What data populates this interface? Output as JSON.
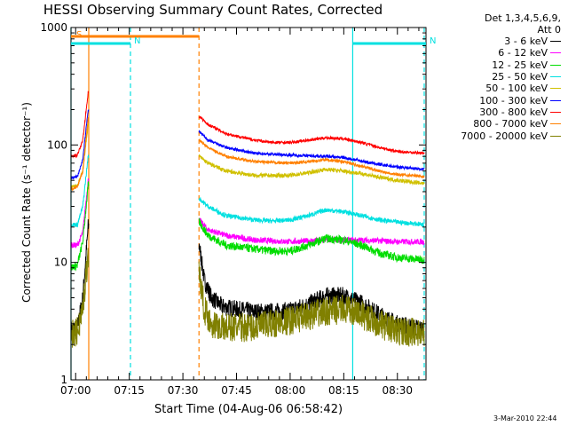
{
  "colors": {
    "3-6": "#000000",
    "6-12": "#ff00ff",
    "12-25": "#00dd00",
    "25-50": "#00e0e0",
    "50-100": "#d0c000",
    "100-300": "#0000ff",
    "300-800": "#ff0000",
    "800-7000": "#ff8000",
    "7000-20000": "#808000",
    "attenuator": "#ff8000",
    "night": "#00e0e0"
  },
  "chart_data": {
    "type": "line",
    "title": "HESSI Observing Summary Count Rates, Corrected",
    "xlabel": "Start Time (04-Aug-06 06:58:42)",
    "ylabel": "Corrected Count Rate (s⁻¹ detector⁻¹)",
    "y_scale": "log",
    "ylim": [
      1,
      1000
    ],
    "xlim": [
      "06:58:42",
      "08:38:00"
    ],
    "x_ticks": [
      "07:00",
      "07:15",
      "07:30",
      "07:45",
      "08:00",
      "08:15",
      "08:30"
    ],
    "y_ticks": [
      "1",
      "10",
      "100",
      "1000"
    ],
    "timestamp": "3-Mar-2010 22:44",
    "legend_header": [
      "Det 1,3,4,5,6,9,",
      "Att 0"
    ],
    "flags": [
      {
        "label": "S",
        "start": "06:58:42",
        "end": "07:34:30",
        "color": "attenuator"
      },
      {
        "label": "N",
        "start": "06:58:42",
        "end": "07:15:20",
        "color": "night"
      },
      {
        "label": "N",
        "start": "08:17:30",
        "end": "08:38:00",
        "color": "night"
      }
    ],
    "vlines": [
      {
        "time": "06:58:42",
        "color": "night",
        "style": "solid"
      },
      {
        "time": "07:03:40",
        "color": "attenuator",
        "style": "solid"
      },
      {
        "time": "07:15:20",
        "color": "night",
        "style": "dashed"
      },
      {
        "time": "07:34:30",
        "color": "attenuator",
        "style": "dashed"
      },
      {
        "time": "08:17:30",
        "color": "night",
        "style": "solid"
      },
      {
        "time": "08:37:30",
        "color": "night",
        "style": "dashed"
      }
    ],
    "gaps": [
      [
        "07:03:40",
        "07:34:30"
      ]
    ],
    "series": [
      {
        "name": "3 - 6 keV",
        "color": "3-6",
        "noise": 0.15,
        "points": [
          [
            "06:58:42",
            2.7
          ],
          [
            "07:00:30",
            2.8
          ],
          [
            "07:02:00",
            5.0
          ],
          [
            "07:03:30",
            20.0
          ],
          [
            "07:34:35",
            14.0
          ],
          [
            "07:36:00",
            7.0
          ],
          [
            "07:38:00",
            5.0
          ],
          [
            "07:41:00",
            4.2
          ],
          [
            "07:45:00",
            4.0
          ],
          [
            "07:50:00",
            3.8
          ],
          [
            "07:55:00",
            3.8
          ],
          [
            "08:00:00",
            3.9
          ],
          [
            "08:05:00",
            4.4
          ],
          [
            "08:10:00",
            5.2
          ],
          [
            "08:15:00",
            5.2
          ],
          [
            "08:20:00",
            4.5
          ],
          [
            "08:25:00",
            3.6
          ],
          [
            "08:30:00",
            3.0
          ],
          [
            "08:35:00",
            2.8
          ],
          [
            "08:37:30",
            2.7
          ]
        ]
      },
      {
        "name": "6 - 12 keV",
        "color": "6-12",
        "noise": 0.05,
        "points": [
          [
            "06:58:42",
            14.0
          ],
          [
            "07:00:30",
            14.0
          ],
          [
            "07:02:00",
            18.0
          ],
          [
            "07:03:30",
            50.0
          ],
          [
            "07:34:35",
            23.0
          ],
          [
            "07:37:00",
            19.0
          ],
          [
            "07:42:00",
            17.0
          ],
          [
            "07:50:00",
            15.5
          ],
          [
            "08:00:00",
            15.0
          ],
          [
            "08:10:00",
            15.5
          ],
          [
            "08:20:00",
            15.5
          ],
          [
            "08:30:00",
            15.0
          ],
          [
            "08:37:30",
            15.0
          ]
        ]
      },
      {
        "name": "12 - 25 keV",
        "color": "12-25",
        "noise": 0.07,
        "points": [
          [
            "06:58:42",
            9.0
          ],
          [
            "07:00:30",
            9.5
          ],
          [
            "07:02:00",
            15.0
          ],
          [
            "07:03:30",
            45.0
          ],
          [
            "07:34:35",
            22.0
          ],
          [
            "07:37:00",
            17.0
          ],
          [
            "07:42:00",
            14.0
          ],
          [
            "07:50:00",
            13.0
          ],
          [
            "07:55:00",
            12.5
          ],
          [
            "08:00:00",
            12.5
          ],
          [
            "08:05:00",
            14.0
          ],
          [
            "08:10:00",
            16.0
          ],
          [
            "08:15:00",
            15.5
          ],
          [
            "08:20:00",
            14.0
          ],
          [
            "08:25:00",
            12.0
          ],
          [
            "08:30:00",
            11.0
          ],
          [
            "08:37:30",
            10.5
          ]
        ]
      },
      {
        "name": "25 - 50 keV",
        "color": "25-50",
        "noise": 0.04,
        "points": [
          [
            "06:58:42",
            21.0
          ],
          [
            "07:00:30",
            21.0
          ],
          [
            "07:02:00",
            30.0
          ],
          [
            "07:03:30",
            80.0
          ],
          [
            "07:34:35",
            35.0
          ],
          [
            "07:37:00",
            30.0
          ],
          [
            "07:42:00",
            25.0
          ],
          [
            "07:50:00",
            23.0
          ],
          [
            "07:55:00",
            22.5
          ],
          [
            "08:00:00",
            23.0
          ],
          [
            "08:05:00",
            25.0
          ],
          [
            "08:10:00",
            28.0
          ],
          [
            "08:15:00",
            27.0
          ],
          [
            "08:20:00",
            25.0
          ],
          [
            "08:25:00",
            23.0
          ],
          [
            "08:30:00",
            22.0
          ],
          [
            "08:37:30",
            21.0
          ]
        ]
      },
      {
        "name": "50 - 100 keV",
        "color": "50-100",
        "noise": 0.035,
        "points": [
          [
            "06:58:42",
            45.0
          ],
          [
            "07:00:30",
            45.0
          ],
          [
            "07:02:00",
            60.0
          ],
          [
            "07:03:30",
            150.0
          ],
          [
            "07:34:35",
            80.0
          ],
          [
            "07:37:00",
            70.0
          ],
          [
            "07:42:00",
            60.0
          ],
          [
            "07:50:00",
            55.0
          ],
          [
            "08:00:00",
            55.0
          ],
          [
            "08:05:00",
            58.0
          ],
          [
            "08:10:00",
            62.0
          ],
          [
            "08:15:00",
            60.0
          ],
          [
            "08:20:00",
            57.0
          ],
          [
            "08:25:00",
            53.0
          ],
          [
            "08:30:00",
            50.0
          ],
          [
            "08:37:30",
            47.0
          ]
        ]
      },
      {
        "name": "100 - 300 keV",
        "color": "100-300",
        "noise": 0.025,
        "points": [
          [
            "06:58:42",
            52.0
          ],
          [
            "07:00:30",
            54.0
          ],
          [
            "07:02:00",
            75.0
          ],
          [
            "07:03:30",
            200.0
          ],
          [
            "07:34:35",
            130.0
          ],
          [
            "07:37:00",
            110.0
          ],
          [
            "07:42:00",
            95.0
          ],
          [
            "07:50:00",
            85.0
          ],
          [
            "08:00:00",
            82.0
          ],
          [
            "08:10:00",
            80.0
          ],
          [
            "08:15:00",
            78.0
          ],
          [
            "08:20:00",
            73.0
          ],
          [
            "08:25:00",
            68.0
          ],
          [
            "08:30:00",
            65.0
          ],
          [
            "08:37:30",
            62.0
          ]
        ]
      },
      {
        "name": "300 - 800 keV",
        "color": "300-800",
        "noise": 0.025,
        "points": [
          [
            "06:58:42",
            80.0
          ],
          [
            "07:00:30",
            82.0
          ],
          [
            "07:02:00",
            110.0
          ],
          [
            "07:03:30",
            280.0
          ],
          [
            "07:34:35",
            175.0
          ],
          [
            "07:37:00",
            150.0
          ],
          [
            "07:42:00",
            125.0
          ],
          [
            "07:50:00",
            110.0
          ],
          [
            "07:55:00",
            105.0
          ],
          [
            "08:00:00",
            105.0
          ],
          [
            "08:05:00",
            110.0
          ],
          [
            "08:10:00",
            115.0
          ],
          [
            "08:15:00",
            113.0
          ],
          [
            "08:20:00",
            105.0
          ],
          [
            "08:25:00",
            95.0
          ],
          [
            "08:30:00",
            88.0
          ],
          [
            "08:37:30",
            85.0
          ]
        ]
      },
      {
        "name": "800 - 7000 keV",
        "color": "800-7000",
        "noise": 0.025,
        "points": [
          [
            "06:58:42",
            42.0
          ],
          [
            "07:00:30",
            44.0
          ],
          [
            "07:02:00",
            60.0
          ],
          [
            "07:03:30",
            170.0
          ],
          [
            "07:34:35",
            110.0
          ],
          [
            "07:37:00",
            95.0
          ],
          [
            "07:42:00",
            80.0
          ],
          [
            "07:50:00",
            72.0
          ],
          [
            "08:00:00",
            70.0
          ],
          [
            "08:05:00",
            72.0
          ],
          [
            "08:10:00",
            75.0
          ],
          [
            "08:15:00",
            72.0
          ],
          [
            "08:20:00",
            66.0
          ],
          [
            "08:25:00",
            60.0
          ],
          [
            "08:30:00",
            56.0
          ],
          [
            "08:37:30",
            54.0
          ]
        ]
      },
      {
        "name": "7000 - 20000 keV",
        "color": "7000-20000",
        "noise": 0.25,
        "points": [
          [
            "06:58:42",
            2.4
          ],
          [
            "07:00:30",
            2.6
          ],
          [
            "07:02:00",
            4.0
          ],
          [
            "07:03:30",
            12.0
          ],
          [
            "07:34:35",
            8.0
          ],
          [
            "07:36:00",
            4.0
          ],
          [
            "07:38:00",
            3.0
          ],
          [
            "07:41:00",
            2.8
          ],
          [
            "07:50:00",
            2.8
          ],
          [
            "08:00:00",
            3.2
          ],
          [
            "08:10:00",
            3.8
          ],
          [
            "08:15:00",
            4.0
          ],
          [
            "08:20:00",
            3.6
          ],
          [
            "08:25:00",
            3.0
          ],
          [
            "08:30:00",
            2.6
          ],
          [
            "08:37:30",
            2.5
          ]
        ]
      }
    ]
  }
}
